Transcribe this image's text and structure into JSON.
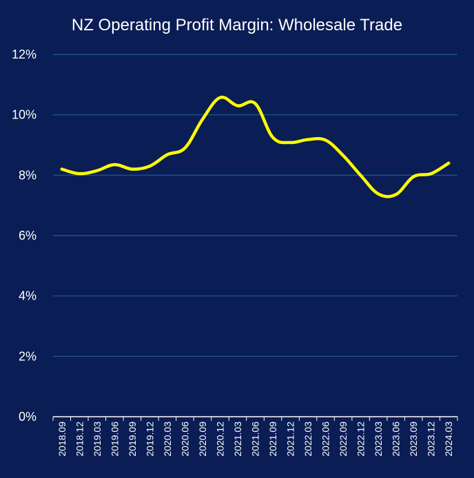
{
  "chart_data": {
    "type": "line",
    "title": "NZ Operating Profit Margin: Wholesale Trade",
    "xlabel": "",
    "ylabel": "",
    "categories": [
      "2018.09",
      "2018.12",
      "2019.03",
      "2019.06",
      "2019.09",
      "2019.12",
      "2020.03",
      "2020.06",
      "2020.09",
      "2020.12",
      "2021.03",
      "2021.06",
      "2021.09",
      "2021.12",
      "2022.03",
      "2022.06",
      "2022.09",
      "2022.12",
      "2023.03",
      "2023.06",
      "2023.09",
      "2023.12",
      "2024.03"
    ],
    "series": [
      {
        "values": [
          8.2,
          8.05,
          8.15,
          8.35,
          8.2,
          8.3,
          8.68,
          8.9,
          9.85,
          10.57,
          10.3,
          10.37,
          9.25,
          9.08,
          9.18,
          9.16,
          8.65,
          7.99,
          7.38,
          7.36,
          7.95,
          8.05,
          8.4
        ]
      }
    ],
    "ylim": [
      0,
      12
    ],
    "yticks": [
      "0%",
      "2%",
      "4%",
      "6%",
      "8%",
      "10%",
      "12%"
    ],
    "y_tick_values": [
      0,
      2,
      4,
      6,
      8,
      10,
      12
    ],
    "grid": true,
    "legend": "none"
  },
  "colors": {
    "background": "#0b1d55",
    "line": "#ffff00",
    "grid": "#1f5f96",
    "axis": "#ffffff",
    "text": "#ffffff"
  }
}
